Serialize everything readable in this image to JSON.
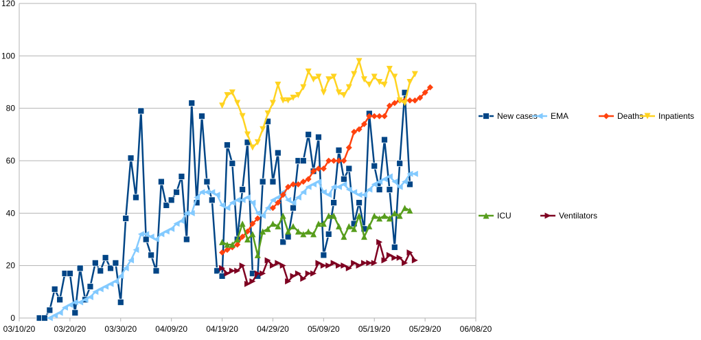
{
  "chart_data": {
    "type": "line",
    "title": "",
    "xlabel": "",
    "ylabel": "",
    "ylim": [
      0,
      120
    ],
    "yticks": [
      "0",
      "20",
      "40",
      "60",
      "80",
      "100",
      "120"
    ],
    "xlim_day": [
      0,
      90
    ],
    "xticks": [
      {
        "label": "03/10/20",
        "day": 0
      },
      {
        "label": "03/20/20",
        "day": 10
      },
      {
        "label": "03/30/20",
        "day": 20
      },
      {
        "label": "04/09/20",
        "day": 30
      },
      {
        "label": "04/19/20",
        "day": 40
      },
      {
        "label": "04/29/20",
        "day": 50
      },
      {
        "label": "05/09/20",
        "day": 60
      },
      {
        "label": "05/19/20",
        "day": 70
      },
      {
        "label": "05/29/20",
        "day": 80
      },
      {
        "label": "06/08/20",
        "day": 90
      }
    ],
    "grid": true,
    "series": [
      {
        "name": "New cases",
        "color": "#004586",
        "marker": "square",
        "start_day": 4,
        "values": [
          0,
          0,
          3,
          11,
          7,
          17,
          17,
          2,
          19,
          7,
          12,
          21,
          18,
          23,
          19,
          21,
          6,
          38,
          61,
          46,
          79,
          30,
          24,
          18,
          52,
          43,
          45,
          48,
          54,
          30,
          82,
          44,
          77,
          52,
          45,
          18,
          16,
          66,
          59,
          30,
          49,
          67,
          17,
          16,
          52,
          75,
          52,
          63,
          29,
          31,
          42,
          60,
          60,
          70,
          56,
          69,
          24,
          32,
          44,
          64,
          53,
          57,
          36,
          44,
          34,
          78,
          58,
          49,
          68,
          49,
          27,
          59,
          86,
          51
        ]
      },
      {
        "name": "EMA",
        "color": "#83caff",
        "marker": "triangle-left",
        "start_day": 6,
        "values": [
          0,
          1,
          2,
          4,
          5,
          6,
          6,
          7,
          8,
          10,
          11,
          12,
          13,
          14,
          16,
          19,
          22,
          26,
          32,
          32,
          31,
          30,
          32,
          33,
          34,
          36,
          37,
          40,
          40,
          46,
          48,
          48,
          48,
          47,
          43,
          42,
          44,
          45,
          45,
          46,
          44,
          40,
          39,
          42,
          45,
          46,
          48,
          45,
          44,
          46,
          48,
          50,
          51,
          52,
          48,
          47,
          50,
          50,
          51,
          49,
          48,
          47,
          47,
          49,
          51,
          52,
          53,
          54,
          52,
          50,
          52,
          55,
          55
        ]
      },
      {
        "name": "Deaths",
        "color": "#ff420e",
        "marker": "diamond",
        "start_day": 40,
        "values": [
          25,
          26,
          27,
          28,
          31,
          33,
          36,
          38,
          null,
          null,
          42,
          44,
          47,
          50,
          51,
          51,
          52,
          53,
          56,
          57,
          57,
          60,
          60,
          60,
          60,
          65,
          71,
          72,
          74,
          77,
          77,
          77,
          77,
          81,
          82,
          83,
          83,
          83,
          83,
          84,
          86,
          88
        ]
      },
      {
        "name": "Inpatients",
        "color": "#ffd320",
        "marker": "triangle-down",
        "start_day": 40,
        "values": [
          81,
          85,
          86,
          82,
          77,
          70,
          65,
          67,
          72,
          78,
          82,
          89,
          83,
          83,
          84,
          85,
          88,
          94,
          91,
          92,
          86,
          91,
          92,
          86,
          85,
          88,
          93,
          98,
          91,
          89,
          92,
          90,
          89,
          95,
          92,
          83,
          82,
          90,
          93
        ]
      },
      {
        "name": "ICU",
        "color": "#579d1c",
        "marker": "triangle-up",
        "start_day": 40,
        "values": [
          29,
          28,
          28,
          30,
          36,
          30,
          32,
          24,
          33,
          34,
          36,
          35,
          39,
          33,
          35,
          33,
          32,
          33,
          32,
          36,
          36,
          39,
          39,
          35,
          31,
          35,
          34,
          39,
          31,
          35,
          39,
          38,
          39,
          38,
          40,
          39,
          42,
          41
        ]
      },
      {
        "name": "Ventilators",
        "color": "#7e0021",
        "marker": "triangle-right",
        "start_day": 40,
        "values": [
          19,
          17,
          18,
          18,
          20,
          13,
          14,
          17,
          17,
          22,
          20,
          21,
          20,
          14,
          16,
          17,
          15,
          17,
          17,
          21,
          20,
          20,
          21,
          20,
          20,
          19,
          21,
          20,
          21,
          21,
          21,
          29,
          22,
          24,
          23,
          23,
          21,
          25,
          22
        ]
      }
    ],
    "legend": {
      "placement": "right"
    }
  }
}
